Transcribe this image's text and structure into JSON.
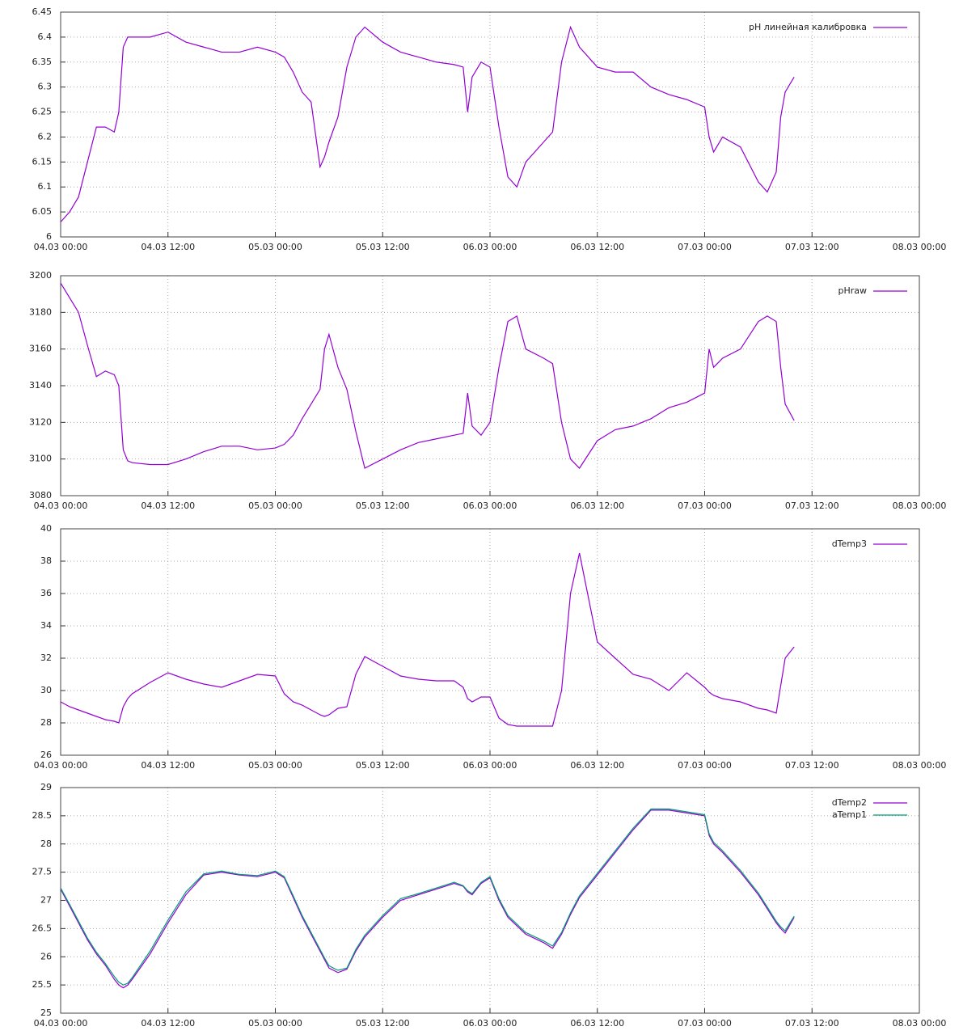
{
  "chart_data": [
    {
      "type": "line",
      "x": [
        "04.03 00:00",
        "04.03 01:00",
        "04.03 02:00",
        "04.03 03:00",
        "04.03 04:00",
        "04.03 05:00",
        "04.03 06:00",
        "04.03 06:30",
        "04.03 07:00",
        "04.03 07:30",
        "04.03 08:00",
        "04.03 10:00",
        "04.03 12:00",
        "04.03 14:00",
        "04.03 16:00",
        "04.03 18:00",
        "04.03 20:00",
        "04.03 22:00",
        "05.03 00:00",
        "05.03 01:00",
        "05.03 02:00",
        "05.03 03:00",
        "05.03 04:00",
        "05.03 05:00",
        "05.03 05:30",
        "05.03 06:00",
        "05.03 07:00",
        "05.03 08:00",
        "05.03 09:00",
        "05.03 10:00",
        "05.03 12:00",
        "05.03 14:00",
        "05.03 16:00",
        "05.03 18:00",
        "05.03 20:00",
        "05.03 21:00",
        "05.03 21:30",
        "05.03 22:00",
        "05.03 23:00",
        "06.03 00:00",
        "06.03 01:00",
        "06.03 02:00",
        "06.03 03:00",
        "06.03 04:00",
        "06.03 06:00",
        "06.03 07:00",
        "06.03 08:00",
        "06.03 09:00",
        "06.03 10:00",
        "06.03 12:00",
        "06.03 14:00",
        "06.03 16:00",
        "06.03 18:00",
        "06.03 20:00",
        "06.03 22:00",
        "07.03 00:00",
        "07.03 00:30",
        "07.03 01:00",
        "07.03 02:00",
        "07.03 04:00",
        "07.03 06:00",
        "07.03 07:00",
        "07.03 08:00",
        "07.03 08:30",
        "07.03 09:00",
        "07.03 10:00"
      ],
      "xlim": [
        "04.03 00:00",
        "08.03 00:00"
      ],
      "xticks": [
        "04.03 00:00",
        "04.03 12:00",
        "05.03 00:00",
        "05.03 12:00",
        "06.03 00:00",
        "06.03 12:00",
        "07.03 00:00",
        "07.03 12:00",
        "08.03 00:00"
      ],
      "ylim": [
        6,
        6.45
      ],
      "yticks": [
        6,
        6.05,
        6.1,
        6.15,
        6.2,
        6.25,
        6.3,
        6.35,
        6.4,
        6.45
      ],
      "grid": true,
      "legend": "upper right",
      "series": [
        {
          "name": "pH линейная калибровка",
          "color": "#9400d3",
          "values": [
            6.03,
            6.05,
            6.08,
            6.15,
            6.22,
            6.22,
            6.21,
            6.25,
            6.38,
            6.4,
            6.4,
            6.4,
            6.41,
            6.39,
            6.38,
            6.37,
            6.37,
            6.38,
            6.37,
            6.36,
            6.33,
            6.29,
            6.27,
            6.14,
            6.16,
            6.19,
            6.24,
            6.34,
            6.4,
            6.42,
            6.39,
            6.37,
            6.36,
            6.35,
            6.345,
            6.34,
            6.25,
            6.32,
            6.35,
            6.34,
            6.22,
            6.12,
            6.1,
            6.15,
            6.19,
            6.21,
            6.35,
            6.42,
            6.38,
            6.34,
            6.33,
            6.33,
            6.3,
            6.285,
            6.275,
            6.26,
            6.2,
            6.17,
            6.2,
            6.18,
            6.11,
            6.09,
            6.13,
            6.24,
            6.29,
            6.32
          ]
        }
      ]
    },
    {
      "type": "line",
      "x": [
        "04.03 00:00",
        "04.03 01:00",
        "04.03 02:00",
        "04.03 03:00",
        "04.03 04:00",
        "04.03 05:00",
        "04.03 06:00",
        "04.03 06:30",
        "04.03 07:00",
        "04.03 07:30",
        "04.03 08:00",
        "04.03 10:00",
        "04.03 12:00",
        "04.03 14:00",
        "04.03 16:00",
        "04.03 18:00",
        "04.03 20:00",
        "04.03 22:00",
        "05.03 00:00",
        "05.03 01:00",
        "05.03 02:00",
        "05.03 03:00",
        "05.03 04:00",
        "05.03 05:00",
        "05.03 05:30",
        "05.03 06:00",
        "05.03 07:00",
        "05.03 08:00",
        "05.03 09:00",
        "05.03 10:00",
        "05.03 12:00",
        "05.03 14:00",
        "05.03 16:00",
        "05.03 18:00",
        "05.03 20:00",
        "05.03 21:00",
        "05.03 21:30",
        "05.03 22:00",
        "05.03 23:00",
        "06.03 00:00",
        "06.03 01:00",
        "06.03 02:00",
        "06.03 03:00",
        "06.03 04:00",
        "06.03 06:00",
        "06.03 07:00",
        "06.03 08:00",
        "06.03 09:00",
        "06.03 10:00",
        "06.03 12:00",
        "06.03 14:00",
        "06.03 16:00",
        "06.03 18:00",
        "06.03 20:00",
        "06.03 22:00",
        "07.03 00:00",
        "07.03 00:30",
        "07.03 01:00",
        "07.03 02:00",
        "07.03 04:00",
        "07.03 06:00",
        "07.03 07:00",
        "07.03 08:00",
        "07.03 08:30",
        "07.03 09:00",
        "07.03 10:00"
      ],
      "xlim": [
        "04.03 00:00",
        "08.03 00:00"
      ],
      "xticks": [
        "04.03 00:00",
        "04.03 12:00",
        "05.03 00:00",
        "05.03 12:00",
        "06.03 00:00",
        "06.03 12:00",
        "07.03 00:00",
        "07.03 12:00",
        "08.03 00:00"
      ],
      "ylim": [
        3080,
        3200
      ],
      "yticks": [
        3080,
        3100,
        3120,
        3140,
        3160,
        3180,
        3200
      ],
      "grid": true,
      "legend": "upper right",
      "series": [
        {
          "name": "pHraw",
          "color": "#9400d3",
          "values": [
            3196,
            3188,
            3180,
            3162,
            3145,
            3148,
            3146,
            3140,
            3105,
            3099,
            3098,
            3097,
            3097,
            3100,
            3104,
            3107,
            3107,
            3105,
            3106,
            3108,
            3113,
            3122,
            3130,
            3138,
            3160,
            3168,
            3150,
            3138,
            3115,
            3095,
            3100,
            3105,
            3109,
            3111,
            3113,
            3114,
            3136,
            3118,
            3113,
            3120,
            3150,
            3175,
            3178,
            3160,
            3155,
            3152,
            3120,
            3100,
            3095,
            3110,
            3116,
            3118,
            3122,
            3128,
            3131,
            3136,
            3160,
            3150,
            3155,
            3160,
            3175,
            3178,
            3175,
            3150,
            3130,
            3121
          ]
        }
      ]
    },
    {
      "type": "line",
      "x": [
        "04.03 00:00",
        "04.03 01:00",
        "04.03 02:00",
        "04.03 03:00",
        "04.03 04:00",
        "04.03 05:00",
        "04.03 06:00",
        "04.03 06:30",
        "04.03 07:00",
        "04.03 07:30",
        "04.03 08:00",
        "04.03 10:00",
        "04.03 12:00",
        "04.03 14:00",
        "04.03 16:00",
        "04.03 18:00",
        "04.03 20:00",
        "04.03 22:00",
        "05.03 00:00",
        "05.03 01:00",
        "05.03 02:00",
        "05.03 03:00",
        "05.03 04:00",
        "05.03 05:00",
        "05.03 05:30",
        "05.03 06:00",
        "05.03 07:00",
        "05.03 08:00",
        "05.03 09:00",
        "05.03 10:00",
        "05.03 12:00",
        "05.03 14:00",
        "05.03 16:00",
        "05.03 18:00",
        "05.03 20:00",
        "05.03 21:00",
        "05.03 21:30",
        "05.03 22:00",
        "05.03 23:00",
        "06.03 00:00",
        "06.03 01:00",
        "06.03 02:00",
        "06.03 03:00",
        "06.03 04:00",
        "06.03 06:00",
        "06.03 07:00",
        "06.03 08:00",
        "06.03 09:00",
        "06.03 10:00",
        "06.03 12:00",
        "06.03 14:00",
        "06.03 16:00",
        "06.03 18:00",
        "06.03 20:00",
        "06.03 22:00",
        "07.03 00:00",
        "07.03 00:30",
        "07.03 01:00",
        "07.03 02:00",
        "07.03 04:00",
        "07.03 06:00",
        "07.03 07:00",
        "07.03 08:00",
        "07.03 08:30",
        "07.03 09:00",
        "07.03 10:00"
      ],
      "xlim": [
        "04.03 00:00",
        "08.03 00:00"
      ],
      "xticks": [
        "04.03 00:00",
        "04.03 12:00",
        "05.03 00:00",
        "05.03 12:00",
        "06.03 00:00",
        "06.03 12:00",
        "07.03 00:00",
        "07.03 12:00",
        "08.03 00:00"
      ],
      "ylim": [
        26,
        40
      ],
      "yticks": [
        26,
        28,
        30,
        32,
        34,
        36,
        38,
        40
      ],
      "grid": true,
      "legend": "upper right",
      "series": [
        {
          "name": "dTemp3",
          "color": "#9400d3",
          "values": [
            29.3,
            29.0,
            28.8,
            28.6,
            28.4,
            28.2,
            28.1,
            28.0,
            29.0,
            29.5,
            29.8,
            30.5,
            31.1,
            30.7,
            30.4,
            30.2,
            30.6,
            31.0,
            30.9,
            29.8,
            29.3,
            29.1,
            28.8,
            28.5,
            28.4,
            28.5,
            28.9,
            29.0,
            31.0,
            32.1,
            31.5,
            30.9,
            30.7,
            30.6,
            30.6,
            30.2,
            29.5,
            29.3,
            29.6,
            29.6,
            28.3,
            27.9,
            27.8,
            27.8,
            27.8,
            27.8,
            30.0,
            36.0,
            38.5,
            33.0,
            32.0,
            31.0,
            30.7,
            30.0,
            31.1,
            30.2,
            29.9,
            29.7,
            29.5,
            29.3,
            28.9,
            28.8,
            28.6,
            30.3,
            32.0,
            32.7
          ]
        }
      ]
    },
    {
      "type": "line",
      "x": [
        "04.03 00:00",
        "04.03 01:00",
        "04.03 02:00",
        "04.03 03:00",
        "04.03 04:00",
        "04.03 05:00",
        "04.03 06:00",
        "04.03 06:30",
        "04.03 07:00",
        "04.03 07:30",
        "04.03 08:00",
        "04.03 10:00",
        "04.03 12:00",
        "04.03 14:00",
        "04.03 16:00",
        "04.03 18:00",
        "04.03 20:00",
        "04.03 22:00",
        "05.03 00:00",
        "05.03 01:00",
        "05.03 02:00",
        "05.03 03:00",
        "05.03 04:00",
        "05.03 05:00",
        "05.03 05:30",
        "05.03 06:00",
        "05.03 07:00",
        "05.03 08:00",
        "05.03 09:00",
        "05.03 10:00",
        "05.03 12:00",
        "05.03 14:00",
        "05.03 16:00",
        "05.03 18:00",
        "05.03 20:00",
        "05.03 21:00",
        "05.03 21:30",
        "05.03 22:00",
        "05.03 23:00",
        "06.03 00:00",
        "06.03 01:00",
        "06.03 02:00",
        "06.03 03:00",
        "06.03 04:00",
        "06.03 06:00",
        "06.03 07:00",
        "06.03 08:00",
        "06.03 09:00",
        "06.03 10:00",
        "06.03 12:00",
        "06.03 14:00",
        "06.03 16:00",
        "06.03 18:00",
        "06.03 20:00",
        "06.03 22:00",
        "07.03 00:00",
        "07.03 00:30",
        "07.03 01:00",
        "07.03 02:00",
        "07.03 04:00",
        "07.03 06:00",
        "07.03 07:00",
        "07.03 08:00",
        "07.03 08:30",
        "07.03 09:00",
        "07.03 10:00"
      ],
      "xlim": [
        "04.03 00:00",
        "08.03 00:00"
      ],
      "xticks": [
        "04.03 00:00",
        "04.03 12:00",
        "05.03 00:00",
        "05.03 12:00",
        "06.03 00:00",
        "06.03 12:00",
        "07.03 00:00",
        "07.03 12:00",
        "08.03 00:00"
      ],
      "ylim": [
        25,
        29
      ],
      "yticks": [
        25,
        25.5,
        26,
        26.5,
        27,
        27.5,
        28,
        28.5,
        29
      ],
      "grid": true,
      "legend": "upper right",
      "series": [
        {
          "name": "dTemp2",
          "color": "#9400d3",
          "values": [
            27.2,
            26.9,
            26.6,
            26.3,
            26.05,
            25.85,
            25.6,
            25.5,
            25.45,
            25.5,
            25.6,
            26.05,
            26.6,
            27.1,
            27.45,
            27.5,
            27.45,
            27.42,
            27.5,
            27.4,
            27.05,
            26.7,
            26.4,
            26.1,
            25.95,
            25.8,
            25.72,
            25.78,
            26.1,
            26.35,
            26.7,
            27.0,
            27.1,
            27.2,
            27.3,
            27.25,
            27.15,
            27.1,
            27.3,
            27.4,
            27.0,
            26.7,
            26.55,
            26.4,
            26.25,
            26.15,
            26.4,
            26.75,
            27.05,
            27.45,
            27.85,
            28.25,
            28.6,
            28.6,
            28.55,
            28.5,
            28.15,
            28.0,
            27.85,
            27.5,
            27.1,
            26.85,
            26.6,
            26.5,
            26.42,
            26.7
          ]
        },
        {
          "name": "aTemp1",
          "color": "#009e73",
          "values": [
            27.22,
            26.93,
            26.63,
            26.33,
            26.08,
            25.88,
            25.65,
            25.55,
            25.5,
            25.53,
            25.63,
            26.1,
            26.65,
            27.15,
            27.47,
            27.52,
            27.46,
            27.44,
            27.52,
            27.42,
            27.08,
            26.73,
            26.43,
            26.13,
            25.98,
            25.84,
            25.76,
            25.8,
            26.13,
            26.38,
            26.73,
            27.03,
            27.12,
            27.22,
            27.32,
            27.26,
            27.17,
            27.12,
            27.32,
            27.42,
            27.03,
            26.73,
            26.58,
            26.43,
            26.28,
            26.19,
            26.43,
            26.78,
            27.08,
            27.48,
            27.88,
            28.28,
            28.62,
            28.62,
            28.57,
            28.52,
            28.18,
            28.03,
            27.88,
            27.53,
            27.13,
            26.88,
            26.63,
            26.53,
            26.46,
            26.72
          ]
        }
      ]
    }
  ]
}
